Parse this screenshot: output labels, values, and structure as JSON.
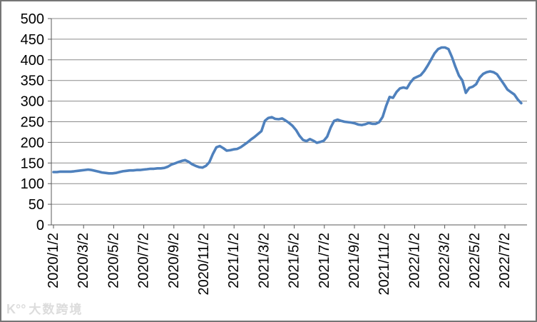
{
  "watermark": {
    "logo": "K°°",
    "text": "大数跨境"
  },
  "chart_data": {
    "type": "line",
    "title": "",
    "xlabel": "",
    "ylabel": "",
    "ylim": [
      0,
      500
    ],
    "grid": true,
    "legend_position": "none",
    "line_color": "#4F81BD",
    "gridline_color": "#8C8C8C",
    "axis_color": "#595959",
    "text_color": "#000000",
    "background_color": "#FFFFFF",
    "y_tick_labels": [
      "0",
      "50",
      "100",
      "150",
      "200",
      "250",
      "300",
      "350",
      "400",
      "450",
      "500"
    ],
    "x_tick_labels": [
      "2020/1/2",
      "2020/3/2",
      "2020/5/2",
      "2020/7/2",
      "2020/9/2",
      "2020/11/2",
      "2021/1/2",
      "2021/3/2",
      "2021/5/2",
      "2021/7/2",
      "2021/9/2",
      "2021/11/2",
      "2022/1/2",
      "2022/3/2",
      "2022/5/2",
      "2022/7/2"
    ],
    "points": [
      [
        "2020/1/2",
        128
      ],
      [
        "2020/1/9",
        128
      ],
      [
        "2020/1/16",
        129
      ],
      [
        "2020/1/23",
        129
      ],
      [
        "2020/1/30",
        129
      ],
      [
        "2020/2/6",
        129
      ],
      [
        "2020/2/13",
        130
      ],
      [
        "2020/2/20",
        131
      ],
      [
        "2020/2/27",
        132
      ],
      [
        "2020/3/5",
        133
      ],
      [
        "2020/3/12",
        134
      ],
      [
        "2020/3/19",
        133
      ],
      [
        "2020/3/26",
        131
      ],
      [
        "2020/4/2",
        129
      ],
      [
        "2020/4/9",
        127
      ],
      [
        "2020/4/16",
        126
      ],
      [
        "2020/4/23",
        125
      ],
      [
        "2020/4/30",
        125
      ],
      [
        "2020/5/7",
        126
      ],
      [
        "2020/5/14",
        128
      ],
      [
        "2020/5/21",
        130
      ],
      [
        "2020/5/28",
        131
      ],
      [
        "2020/6/4",
        132
      ],
      [
        "2020/6/11",
        132
      ],
      [
        "2020/6/18",
        133
      ],
      [
        "2020/6/25",
        133
      ],
      [
        "2020/7/2",
        134
      ],
      [
        "2020/7/9",
        135
      ],
      [
        "2020/7/16",
        136
      ],
      [
        "2020/7/23",
        136
      ],
      [
        "2020/7/30",
        137
      ],
      [
        "2020/8/6",
        137
      ],
      [
        "2020/8/13",
        138
      ],
      [
        "2020/8/20",
        141
      ],
      [
        "2020/8/27",
        146
      ],
      [
        "2020/9/3",
        149
      ],
      [
        "2020/9/10",
        152
      ],
      [
        "2020/9/17",
        155
      ],
      [
        "2020/9/24",
        157
      ],
      [
        "2020/10/1",
        153
      ],
      [
        "2020/10/8",
        147
      ],
      [
        "2020/10/15",
        143
      ],
      [
        "2020/10/22",
        140
      ],
      [
        "2020/10/29",
        139
      ],
      [
        "2020/11/5",
        143
      ],
      [
        "2020/11/12",
        152
      ],
      [
        "2020/11/19",
        172
      ],
      [
        "2020/11/26",
        188
      ],
      [
        "2020/12/3",
        191
      ],
      [
        "2020/12/10",
        186
      ],
      [
        "2020/12/17",
        180
      ],
      [
        "2020/12/24",
        181
      ],
      [
        "2020/12/31",
        183
      ],
      [
        "2021/1/7",
        184
      ],
      [
        "2021/1/14",
        188
      ],
      [
        "2021/1/21",
        194
      ],
      [
        "2021/1/28",
        200
      ],
      [
        "2021/2/4",
        207
      ],
      [
        "2021/2/11",
        213
      ],
      [
        "2021/2/18",
        220
      ],
      [
        "2021/2/25",
        227
      ],
      [
        "2021/3/4",
        252
      ],
      [
        "2021/3/11",
        259
      ],
      [
        "2021/3/18",
        261
      ],
      [
        "2021/3/25",
        257
      ],
      [
        "2021/4/1",
        256
      ],
      [
        "2021/4/8",
        258
      ],
      [
        "2021/4/15",
        253
      ],
      [
        "2021/4/22",
        247
      ],
      [
        "2021/4/29",
        240
      ],
      [
        "2021/5/6",
        230
      ],
      [
        "2021/5/13",
        216
      ],
      [
        "2021/5/20",
        206
      ],
      [
        "2021/5/27",
        203
      ],
      [
        "2021/6/3",
        208
      ],
      [
        "2021/6/10",
        204
      ],
      [
        "2021/6/17",
        199
      ],
      [
        "2021/6/24",
        201
      ],
      [
        "2021/7/1",
        204
      ],
      [
        "2021/7/8",
        214
      ],
      [
        "2021/7/15",
        236
      ],
      [
        "2021/7/22",
        252
      ],
      [
        "2021/7/29",
        255
      ],
      [
        "2021/8/5",
        252
      ],
      [
        "2021/8/12",
        250
      ],
      [
        "2021/8/19",
        249
      ],
      [
        "2021/8/26",
        248
      ],
      [
        "2021/9/2",
        246
      ],
      [
        "2021/9/9",
        243
      ],
      [
        "2021/9/16",
        242
      ],
      [
        "2021/9/23",
        244
      ],
      [
        "2021/9/30",
        247
      ],
      [
        "2021/10/7",
        245
      ],
      [
        "2021/10/14",
        245
      ],
      [
        "2021/10/21",
        249
      ],
      [
        "2021/10/28",
        262
      ],
      [
        "2021/11/4",
        288
      ],
      [
        "2021/11/11",
        310
      ],
      [
        "2021/11/18",
        308
      ],
      [
        "2021/11/25",
        322
      ],
      [
        "2021/12/2",
        331
      ],
      [
        "2021/12/9",
        333
      ],
      [
        "2021/12/16",
        331
      ],
      [
        "2021/12/23",
        345
      ],
      [
        "2021/12/30",
        355
      ],
      [
        "2022/1/6",
        359
      ],
      [
        "2022/1/13",
        363
      ],
      [
        "2022/1/20",
        373
      ],
      [
        "2022/1/27",
        386
      ],
      [
        "2022/2/3",
        401
      ],
      [
        "2022/2/10",
        416
      ],
      [
        "2022/2/17",
        426
      ],
      [
        "2022/2/24",
        430
      ],
      [
        "2022/3/3",
        430
      ],
      [
        "2022/3/10",
        426
      ],
      [
        "2022/3/17",
        407
      ],
      [
        "2022/3/24",
        383
      ],
      [
        "2022/3/31",
        362
      ],
      [
        "2022/4/7",
        350
      ],
      [
        "2022/4/14",
        320
      ],
      [
        "2022/4/21",
        332
      ],
      [
        "2022/4/28",
        335
      ],
      [
        "2022/5/5",
        341
      ],
      [
        "2022/5/12",
        357
      ],
      [
        "2022/5/19",
        366
      ],
      [
        "2022/5/26",
        370
      ],
      [
        "2022/6/2",
        372
      ],
      [
        "2022/6/9",
        370
      ],
      [
        "2022/6/16",
        365
      ],
      [
        "2022/6/23",
        353
      ],
      [
        "2022/6/30",
        341
      ],
      [
        "2022/7/7",
        328
      ],
      [
        "2022/7/14",
        322
      ],
      [
        "2022/7/21",
        316
      ],
      [
        "2022/7/28",
        304
      ],
      [
        "2022/8/4",
        295
      ]
    ]
  }
}
